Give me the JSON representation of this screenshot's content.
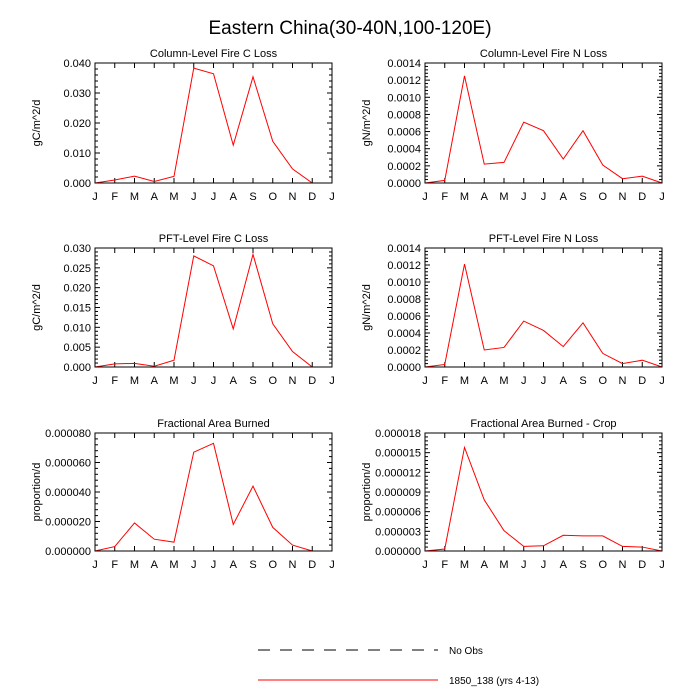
{
  "figure": {
    "title": "Eastern China(30-40N,100-120E)",
    "legend": [
      {
        "label": "No Obs",
        "style": "dashed",
        "color": "#000000"
      },
      {
        "label": "1850_138 (yrs 4-13)",
        "style": "solid",
        "color": "#ff0000"
      }
    ]
  },
  "chart_data": [
    {
      "type": "line",
      "title": "Column-Level Fire C Loss",
      "xlabel": "",
      "ylabel": "gC/m^2/d",
      "categories": [
        "J",
        "F",
        "M",
        "A",
        "M",
        "J",
        "J",
        "A",
        "S",
        "O",
        "N",
        "D",
        "J"
      ],
      "ylim": [
        0,
        0.04
      ],
      "yticks": [
        "0.000",
        "0.010",
        "0.020",
        "0.030",
        "0.040"
      ],
      "series": [
        {
          "name": "1850_138 (yrs 4-13)",
          "color": "#ff0000",
          "values": [
            0.0,
            0.001,
            0.0023,
            0.0005,
            0.0022,
            0.0383,
            0.0364,
            0.0126,
            0.0354,
            0.0139,
            0.0047,
            0.0,
            0.0
          ]
        }
      ]
    },
    {
      "type": "line",
      "title": "Column-Level Fire N Loss",
      "xlabel": "",
      "ylabel": "gN/m^2/d",
      "categories": [
        "J",
        "F",
        "M",
        "A",
        "M",
        "J",
        "J",
        "A",
        "S",
        "O",
        "N",
        "D",
        "J"
      ],
      "ylim": [
        0,
        0.0014
      ],
      "yticks": [
        "0.0000",
        "0.0002",
        "0.0004",
        "0.0006",
        "0.0008",
        "0.0010",
        "0.0012",
        "0.0014"
      ],
      "series": [
        {
          "name": "1850_138 (yrs 4-13)",
          "color": "#ff0000",
          "values": [
            0.0,
            3e-05,
            0.00125,
            0.00022,
            0.00024,
            0.00071,
            0.00061,
            0.00028,
            0.00061,
            0.00021,
            5e-05,
            8e-05,
            0.0
          ]
        }
      ]
    },
    {
      "type": "line",
      "title": "PFT-Level Fire C Loss",
      "xlabel": "",
      "ylabel": "gC/m^2/d",
      "categories": [
        "J",
        "F",
        "M",
        "A",
        "M",
        "J",
        "J",
        "A",
        "S",
        "O",
        "N",
        "D",
        "J"
      ],
      "ylim": [
        0,
        0.03
      ],
      "yticks": [
        "0.000",
        "0.005",
        "0.010",
        "0.015",
        "0.020",
        "0.025",
        "0.030"
      ],
      "series": [
        {
          "name": "1850_138 (yrs 4-13)",
          "color": "#ff0000",
          "values": [
            0.0,
            0.0008,
            0.0009,
            0.0002,
            0.0017,
            0.028,
            0.0255,
            0.0096,
            0.0284,
            0.0109,
            0.0039,
            0.0,
            0.0
          ]
        }
      ]
    },
    {
      "type": "line",
      "title": "PFT-Level Fire N Loss",
      "xlabel": "",
      "ylabel": "gN/m^2/d",
      "categories": [
        "J",
        "F",
        "M",
        "A",
        "M",
        "J",
        "J",
        "A",
        "S",
        "O",
        "N",
        "D",
        "J"
      ],
      "ylim": [
        0,
        0.0014
      ],
      "yticks": [
        "0.0000",
        "0.0002",
        "0.0004",
        "0.0006",
        "0.0008",
        "0.0010",
        "0.0012",
        "0.0014"
      ],
      "series": [
        {
          "name": "1850_138 (yrs 4-13)",
          "color": "#ff0000",
          "values": [
            0.0,
            3e-05,
            0.00121,
            0.0002,
            0.00023,
            0.00054,
            0.00043,
            0.00024,
            0.00052,
            0.00016,
            4e-05,
            8e-05,
            0.0
          ]
        }
      ]
    },
    {
      "type": "line",
      "title": "Fractional Area Burned",
      "xlabel": "",
      "ylabel": "proportion/d",
      "categories": [
        "J",
        "F",
        "M",
        "A",
        "M",
        "J",
        "J",
        "A",
        "S",
        "O",
        "N",
        "D",
        "J"
      ],
      "ylim": [
        0,
        8e-05
      ],
      "yticks": [
        "0.000000",
        "0.000020",
        "0.000040",
        "0.000060",
        "0.000080"
      ],
      "series": [
        {
          "name": "1850_138 (yrs 4-13)",
          "color": "#ff0000",
          "values": [
            0.0,
            3e-06,
            1.9e-05,
            8e-06,
            6e-06,
            6.7e-05,
            7.3e-05,
            1.8e-05,
            4.4e-05,
            1.6e-05,
            4e-06,
            0.0,
            0.0
          ]
        }
      ]
    },
    {
      "type": "line",
      "title": "Fractional Area Burned - Crop",
      "xlabel": "",
      "ylabel": "proportion/d",
      "categories": [
        "J",
        "F",
        "M",
        "A",
        "M",
        "J",
        "J",
        "A",
        "S",
        "O",
        "N",
        "D",
        "J"
      ],
      "ylim": [
        0,
        1.8e-05
      ],
      "yticks": [
        "0.000000",
        "0.000003",
        "0.000006",
        "0.000009",
        "0.000012",
        "0.000015",
        "0.000018"
      ],
      "series": [
        {
          "name": "1850_138 (yrs 4-13)",
          "color": "#ff0000",
          "values": [
            0.0,
            3e-07,
            1.58e-05,
            7.8e-06,
            3.1e-06,
            7e-07,
            8e-07,
            2.4e-06,
            2.3e-06,
            2.3e-06,
            7e-07,
            6e-07,
            0.0
          ]
        }
      ]
    }
  ]
}
